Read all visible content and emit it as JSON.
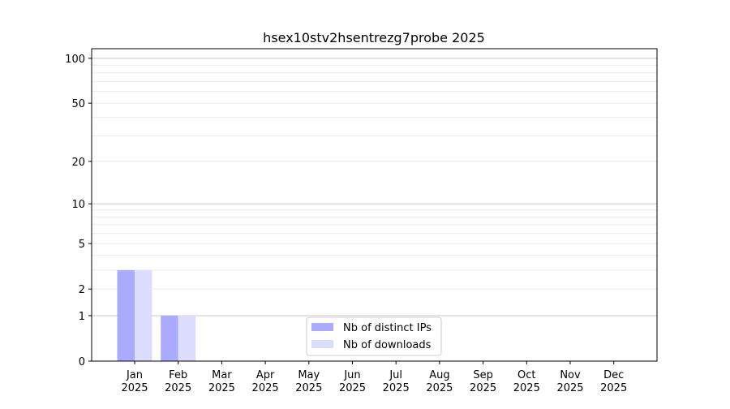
{
  "chart_data": {
    "type": "bar",
    "title": "hsex10stv2hsentrezg7probe 2025",
    "xlabel": "",
    "ylabel": "",
    "y_scale": "log(1+y)",
    "ylim": [
      0,
      116
    ],
    "yticks": [
      0,
      1,
      2,
      5,
      10,
      20,
      50,
      100
    ],
    "grid": true,
    "legend_position": "bottom-center",
    "categories": [
      "Jan\n2025",
      "Feb\n2025",
      "Mar\n2025",
      "Apr\n2025",
      "May\n2025",
      "Jun\n2025",
      "Jul\n2025",
      "Aug\n2025",
      "Sep\n2025",
      "Oct\n2025",
      "Nov\n2025",
      "Dec\n2025"
    ],
    "series": [
      {
        "name": "Nb of distinct IPs",
        "color": "#aaaaff",
        "values": [
          3,
          1,
          0,
          0,
          0,
          0,
          0,
          0,
          0,
          0,
          0,
          0
        ]
      },
      {
        "name": "Nb of downloads",
        "color": "#ddddff",
        "values": [
          3,
          1,
          0,
          0,
          0,
          0,
          0,
          0,
          0,
          0,
          0,
          0
        ]
      }
    ]
  }
}
